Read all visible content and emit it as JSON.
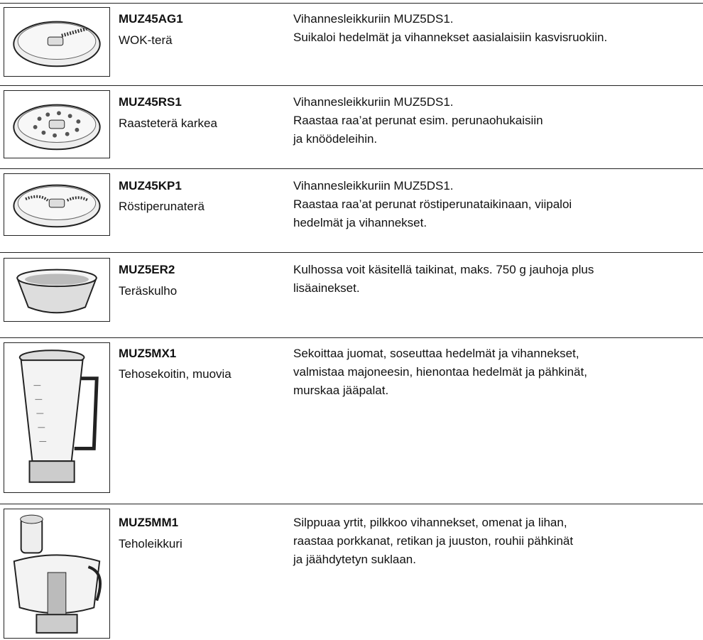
{
  "rows": [
    {
      "code": "MUZ45AG1",
      "name": "WOK-terä",
      "description": [
        "Vihannesleikkuriin MUZ5DS1.",
        "Suikaloi hedelmät ja vihannekset aasialaisiin kasvisruokiin."
      ]
    },
    {
      "code": "MUZ45RS1",
      "name": "Raasteterä karkea",
      "description": [
        "Vihannesleikkuriin MUZ5DS1.",
        "Raastaa raa’at perunat esim. perunaohukaisiin",
        "ja knöödeleihin."
      ]
    },
    {
      "code": "MUZ45KP1",
      "name": "Röstiperunaterä",
      "description": [
        "Vihannesleikkuriin MUZ5DS1.",
        "Raastaa raa’at perunat röstiperunataikinaan, viipaloi",
        "hedelmät ja vihannekset."
      ]
    },
    {
      "code": "MUZ5ER2",
      "name": "Teräskulho",
      "description": [
        "Kulhossa voit käsitellä taikinat, maks. 750 g jauhoja plus",
        "lisäainekset."
      ]
    },
    {
      "code": "MUZ5MX1",
      "name": "Tehosekoitin, muovia",
      "description": [
        "Sekoittaa juomat, soseuttaa hedelmät ja vihannekset,",
        "valmistaa majoneesin, hienontaa hedelmät ja pähkinät,",
        "murskaa jääpalat."
      ]
    },
    {
      "code": "MUZ5MM1",
      "name": "Teholeikkuri",
      "description": [
        "Silppuaa yrtit, pilkkoo vihannekset, omenat ja lihan,",
        "raastaa porkkanat, retikan ja juuston, rouhii pähkinät",
        "ja jäähdytetyn suklaan."
      ]
    }
  ]
}
